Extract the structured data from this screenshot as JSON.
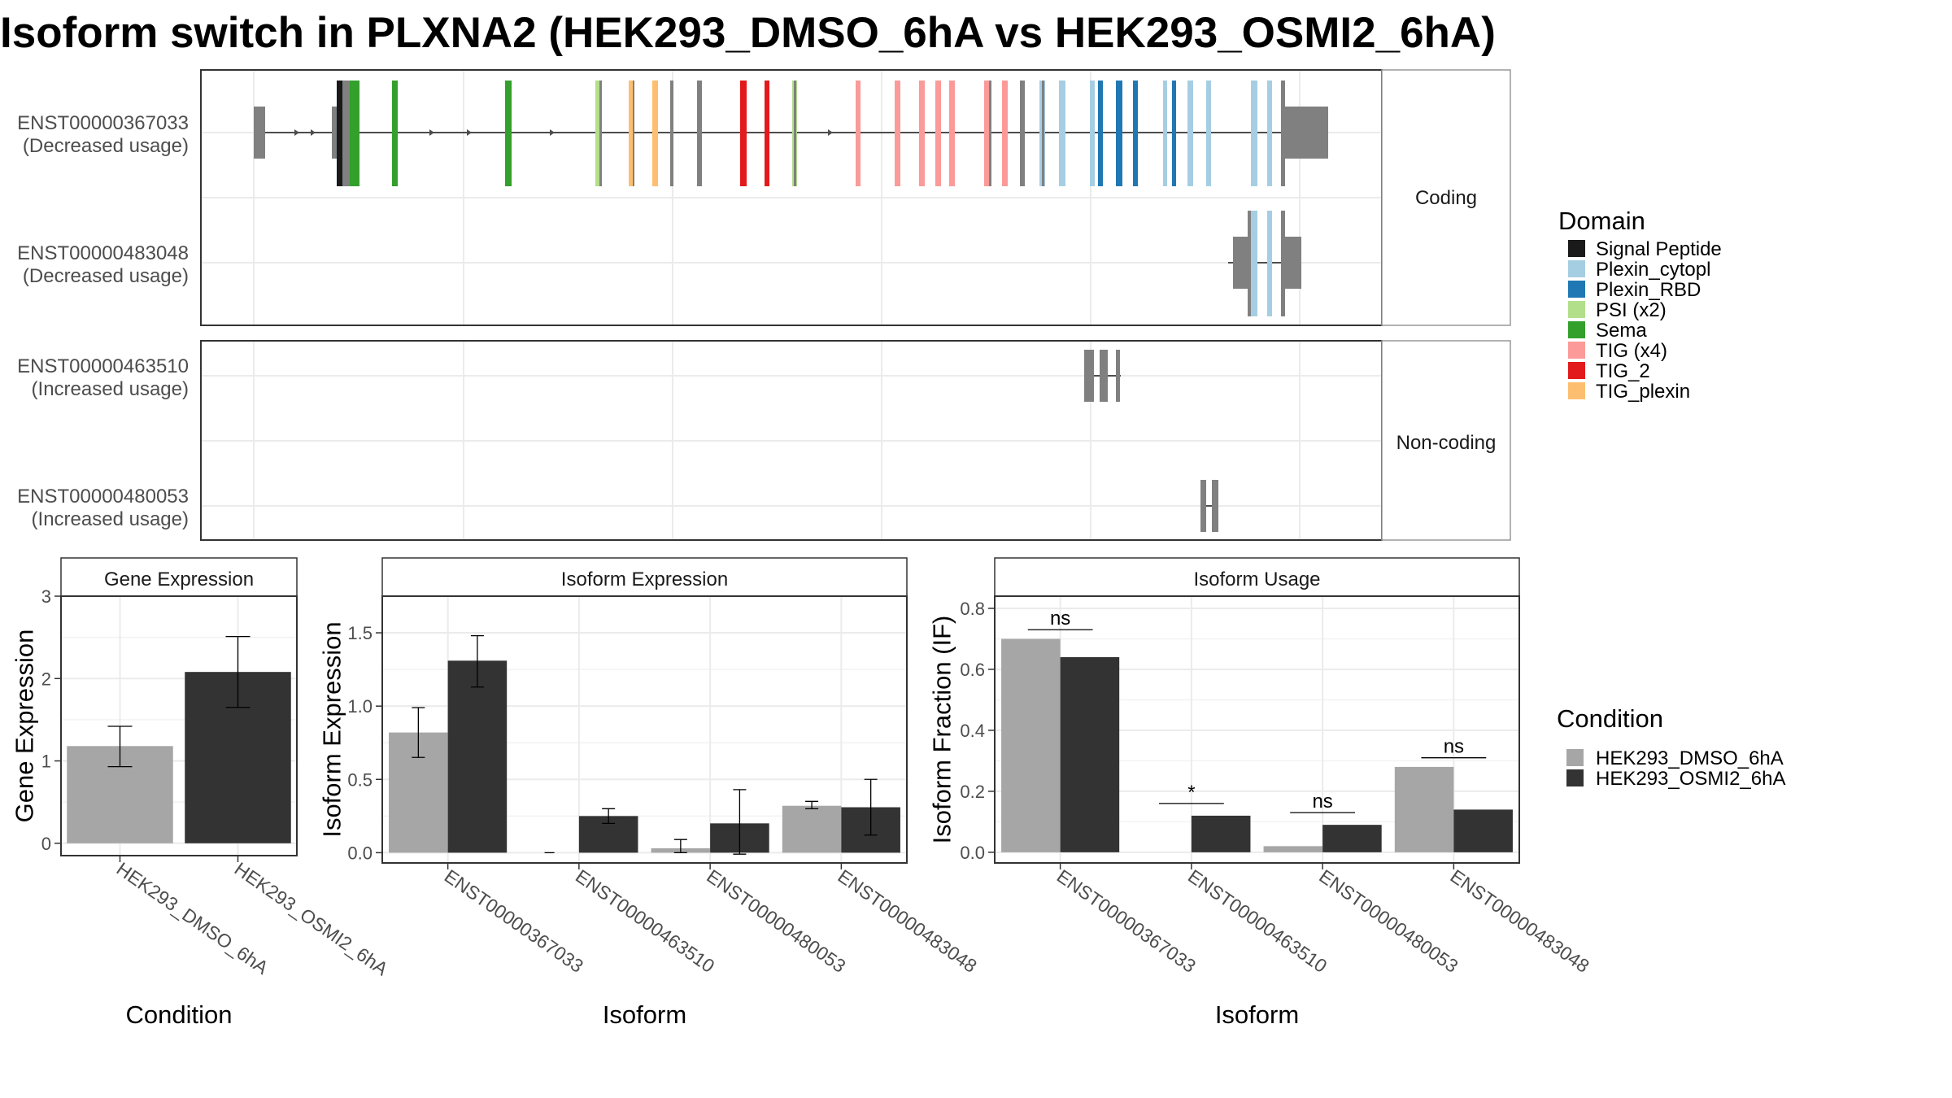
{
  "title": "Isoform switch in PLXNA2 (HEK293_DMSO_6hA vs HEK293_OSMI2_6hA)",
  "colors": {
    "cond1": "#a6a6a6",
    "cond2": "#333333",
    "exon": "#808080"
  },
  "transcript_panels": [
    {
      "facet": "Coding",
      "rows": [
        {
          "id": "ENST00000367033",
          "usage": "(Decreased usage)"
        },
        {
          "id": "ENST00000483048",
          "usage": "(Decreased usage)"
        }
      ]
    },
    {
      "facet": "Non-coding",
      "rows": [
        {
          "id": "ENST00000463510",
          "usage": "(Increased usage)"
        },
        {
          "id": "ENST00000480053",
          "usage": "(Increased usage)"
        }
      ]
    }
  ],
  "domain_legend": {
    "title": "Domain",
    "items": [
      {
        "label": "Signal Peptide",
        "color": "#1a1a1a"
      },
      {
        "label": "Plexin_cytopl",
        "color": "#a6cee3"
      },
      {
        "label": "Plexin_RBD",
        "color": "#1f78b4"
      },
      {
        "label": "PSI (x2)",
        "color": "#b2df8a"
      },
      {
        "label": "Sema",
        "color": "#33a02c"
      },
      {
        "label": "TIG (x4)",
        "color": "#fb9a99"
      },
      {
        "label": "TIG_2",
        "color": "#e31a1c"
      },
      {
        "label": "TIG_plexin",
        "color": "#fdbf6f"
      }
    ]
  },
  "condition_legend": {
    "title": "Condition",
    "items": [
      {
        "label": "HEK293_DMSO_6hA",
        "color": "#a6a6a6"
      },
      {
        "label": "HEK293_OSMI2_6hA",
        "color": "#333333"
      }
    ]
  },
  "chart_data": [
    {
      "type": "bar",
      "title": "Gene Expression",
      "xlabel": "Condition",
      "ylabel": "Gene Expression",
      "ylim": [
        -0.15,
        3.0
      ],
      "yticks": [
        0,
        1,
        2,
        3
      ],
      "categories": [
        "HEK293_DMSO_6hA",
        "HEK293_OSMI2_6hA"
      ],
      "values": [
        1.18,
        2.08
      ],
      "errors": [
        [
          0.93,
          1.42
        ],
        [
          1.65,
          2.51
        ]
      ],
      "colors": [
        "#a6a6a6",
        "#333333"
      ]
    },
    {
      "type": "bar",
      "title": "Isoform Expression",
      "xlabel": "Isoform",
      "ylabel": "Isoform Expression",
      "ylim": [
        -0.07,
        1.75
      ],
      "yticks": [
        0.0,
        0.5,
        1.0,
        1.5
      ],
      "categories": [
        "ENST00000367033",
        "ENST00000463510",
        "ENST00000480053",
        "ENST00000483048"
      ],
      "series": [
        {
          "name": "HEK293_DMSO_6hA",
          "values": [
            0.82,
            0.0,
            0.03,
            0.32
          ],
          "errors": [
            [
              0.65,
              0.99
            ],
            [
              0.0,
              0.0
            ],
            [
              0.0,
              0.09
            ],
            [
              0.3,
              0.35
            ]
          ]
        },
        {
          "name": "HEK293_OSMI2_6hA",
          "values": [
            1.31,
            0.25,
            0.2,
            0.31
          ],
          "errors": [
            [
              1.13,
              1.48
            ],
            [
              0.2,
              0.3
            ],
            [
              -0.01,
              0.43
            ],
            [
              0.12,
              0.5
            ]
          ]
        }
      ]
    },
    {
      "type": "bar",
      "title": "Isoform Usage",
      "xlabel": "Isoform",
      "ylabel": "Isoform Fraction (IF)",
      "ylim": [
        -0.035,
        0.84
      ],
      "yticks": [
        0.0,
        0.2,
        0.4,
        0.6,
        0.8
      ],
      "categories": [
        "ENST00000367033",
        "ENST00000463510",
        "ENST00000480053",
        "ENST00000483048"
      ],
      "series": [
        {
          "name": "HEK293_DMSO_6hA",
          "values": [
            0.7,
            0.0,
            0.02,
            0.28
          ]
        },
        {
          "name": "HEK293_OSMI2_6hA",
          "values": [
            0.64,
            0.12,
            0.09,
            0.14
          ]
        }
      ],
      "significance": [
        {
          "label": "ns",
          "y": 0.73
        },
        {
          "label": "*",
          "y": 0.16
        },
        {
          "label": "ns",
          "y": 0.13
        },
        {
          "label": "ns",
          "y": 0.31
        }
      ]
    }
  ]
}
